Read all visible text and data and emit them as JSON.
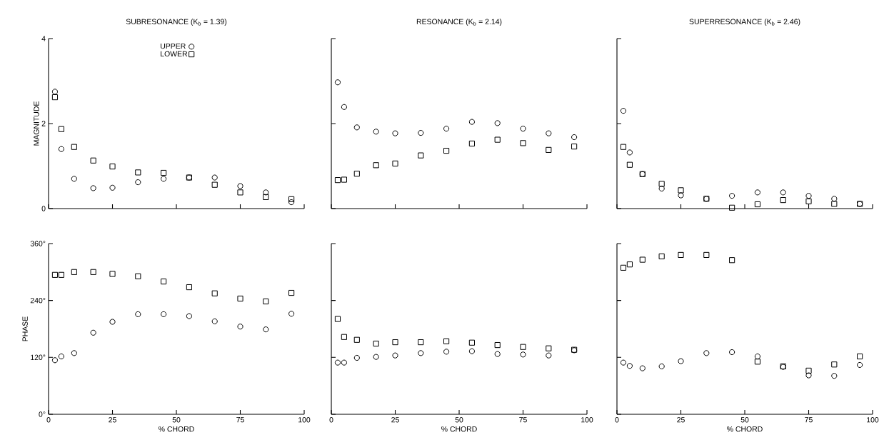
{
  "chart_data": [
    {
      "type": "scatter",
      "title": "SUBRESONANCE (K$_{b}$ = 1.39)",
      "ylabel": "MAGNITUDE",
      "x": [
        2.5,
        5,
        10,
        17.5,
        25,
        35,
        45,
        55,
        65,
        75,
        85,
        95
      ],
      "series": [
        {
          "name": "UPPER",
          "color": "#000000",
          "marker": "circle",
          "values": [
            2.75,
            1.4,
            0.7,
            0.48,
            0.49,
            0.62,
            0.7,
            0.73,
            0.73,
            0.53,
            0.38,
            0.15
          ]
        },
        {
          "name": "LOWER",
          "color": "#000000",
          "marker": "square",
          "values": [
            2.62,
            1.87,
            1.45,
            1.13,
            0.99,
            0.85,
            0.84,
            0.73,
            0.56,
            0.38,
            0.27,
            0.22
          ]
        }
      ],
      "xlim": [
        0,
        100
      ],
      "xticks": [
        0,
        25,
        50,
        75,
        100
      ],
      "ylim": [
        0,
        4
      ],
      "yticks": [
        0,
        2,
        4
      ],
      "tick_labels": "y",
      "legend": "top"
    },
    {
      "type": "scatter",
      "title": "RESONANCE (K$_{b}$ = 2.14)",
      "x": [
        2.5,
        5,
        10,
        17.5,
        25,
        35,
        45,
        55,
        65,
        75,
        85,
        95
      ],
      "series": [
        {
          "color": "#000000",
          "marker": "circle",
          "values": [
            2.97,
            2.39,
            1.91,
            1.81,
            1.77,
            1.78,
            1.88,
            2.04,
            2.01,
            1.88,
            1.77,
            1.68
          ]
        },
        {
          "color": "#000000",
          "marker": "square",
          "values": [
            0.67,
            0.68,
            0.82,
            1.02,
            1.06,
            1.25,
            1.36,
            1.53,
            1.62,
            1.54,
            1.38,
            1.46
          ]
        }
      ],
      "xlim": [
        0,
        100
      ],
      "xticks": [
        0,
        25,
        50,
        75,
        100
      ],
      "ylim": [
        0,
        4
      ],
      "yticks": [
        0,
        2,
        4
      ],
      "tick_labels": false
    },
    {
      "type": "scatter",
      "title": "SUPERRESONANCE (K$_{b}$ = 2.46)",
      "x": [
        2.5,
        5,
        10,
        17.5,
        25,
        35,
        45,
        55,
        65,
        75,
        85,
        95
      ],
      "series": [
        {
          "color": "#000000",
          "marker": "circle",
          "values": [
            2.3,
            1.32,
            0.81,
            0.47,
            0.31,
            0.23,
            0.3,
            0.38,
            0.38,
            0.3,
            0.23,
            0.11
          ]
        },
        {
          "color": "#000000",
          "marker": "square",
          "values": [
            1.45,
            1.03,
            0.81,
            0.58,
            0.43,
            0.23,
            0.02,
            0.1,
            0.2,
            0.17,
            0.11,
            0.11
          ]
        }
      ],
      "xlim": [
        0,
        100
      ],
      "xticks": [
        0,
        25,
        50,
        75,
        100
      ],
      "ylim": [
        0,
        4
      ],
      "yticks": [
        0,
        2,
        4
      ],
      "tick_labels": false
    },
    {
      "type": "scatter",
      "ylabel": "PHASE",
      "xlabel": "% CHORD",
      "x": [
        2.5,
        5,
        10,
        17.5,
        25,
        35,
        45,
        55,
        65,
        75,
        85,
        95
      ],
      "series": [
        {
          "color": "#000000",
          "marker": "circle",
          "values": [
            114,
            122,
            129,
            172,
            195,
            211,
            211,
            207,
            196,
            185,
            179,
            212
          ]
        },
        {
          "color": "#000000",
          "marker": "square",
          "values": [
            294,
            294,
            300,
            300,
            296,
            291,
            280,
            268,
            255,
            244,
            238,
            256
          ]
        }
      ],
      "xlim": [
        0,
        100
      ],
      "xticks": [
        0,
        25,
        50,
        75,
        100
      ],
      "ylim": [
        0,
        360
      ],
      "yticks": [
        {
          "value": 0,
          "label": "0°"
        },
        {
          "value": 120,
          "label": "120°"
        },
        {
          "value": 240,
          "label": "240°"
        },
        {
          "value": 360,
          "label": "360°"
        }
      ]
    },
    {
      "type": "scatter",
      "xlabel": "% CHORD",
      "x": [
        2.5,
        5,
        10,
        17.5,
        25,
        35,
        45,
        55,
        65,
        75,
        85,
        95
      ],
      "series": [
        {
          "color": "#000000",
          "marker": "circle",
          "values": [
            109,
            109,
            119,
            121,
            124,
            129,
            132,
            133,
            127,
            126,
            124,
            135
          ]
        },
        {
          "color": "#000000",
          "marker": "square",
          "values": [
            201,
            163,
            157,
            149,
            152,
            152,
            154,
            151,
            146,
            142,
            139,
            136
          ]
        }
      ],
      "xlim": [
        0,
        100
      ],
      "xticks": [
        0,
        25,
        50,
        75,
        100
      ],
      "ylim": [
        0,
        360
      ],
      "yticks": [
        0,
        120,
        240,
        360
      ],
      "tick_labels": "x"
    },
    {
      "type": "scatter",
      "xlabel": "% CHORD",
      "x": [
        2.5,
        5,
        10,
        17.5,
        25,
        35,
        45,
        55,
        65,
        75,
        85,
        95
      ],
      "series": [
        {
          "color": "#000000",
          "marker": "circle",
          "values": [
            109,
            102,
            97,
            101,
            112,
            129,
            131,
            122,
            100,
            82,
            81,
            104
          ]
        },
        {
          "color": "#000000",
          "marker": "square",
          "values": [
            309,
            316,
            326,
            333,
            336,
            336,
            325,
            111,
            101,
            92,
            105,
            122
          ]
        }
      ],
      "xlim": [
        0,
        100
      ],
      "xticks": [
        0,
        25,
        50,
        75,
        100
      ],
      "ylim": [
        0,
        360
      ],
      "yticks": [
        0,
        120,
        240,
        360
      ],
      "tick_labels": "x"
    }
  ]
}
